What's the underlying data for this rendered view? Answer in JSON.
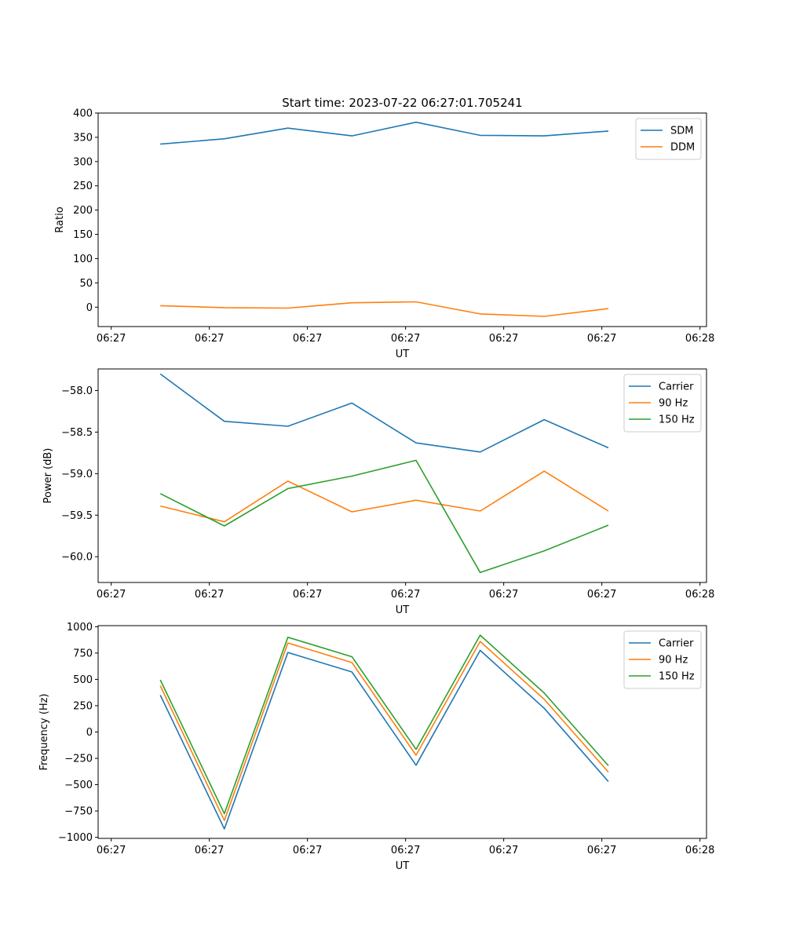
{
  "title": "Start time: 2023-07-22 06:27:01.705241",
  "chart_data": [
    {
      "type": "line",
      "xlabel": "UT",
      "ylabel": "Ratio",
      "ylim": [
        -40,
        400
      ],
      "yticks": [
        0,
        50,
        100,
        150,
        200,
        250,
        300,
        350,
        400
      ],
      "ytick_labels": [
        "0",
        "50",
        "100",
        "150",
        "200",
        "250",
        "300",
        "350",
        "400"
      ],
      "xlim": [
        -0.2,
        9.1
      ],
      "xticks": [
        0,
        1.5,
        3,
        4.5,
        6,
        7.5,
        9
      ],
      "xtick_labels": [
        "06:27",
        "06:27",
        "06:27",
        "06:27",
        "06:27",
        "06:27",
        "06:28"
      ],
      "x": [
        0.75,
        1.73,
        2.7,
        3.68,
        4.66,
        5.64,
        6.62,
        7.6
      ],
      "legend_loc": "upper-right",
      "series": [
        {
          "name": "SDM",
          "color": "#1f77b4",
          "values": [
            336,
            347,
            369,
            353,
            381,
            354,
            353,
            363
          ]
        },
        {
          "name": "DDM",
          "color": "#ff7f0e",
          "values": [
            3,
            -1,
            -2,
            9,
            11,
            -14,
            -19,
            -3
          ]
        }
      ]
    },
    {
      "type": "line",
      "xlabel": "UT",
      "ylabel": "Power (dB)",
      "ylim": [
        -60.31,
        -57.74
      ],
      "yticks": [
        -60.0,
        -59.5,
        -59.0,
        -58.5,
        -58.0
      ],
      "ytick_labels": [
        "−60.0",
        "−59.5",
        "−59.0",
        "−58.5",
        "−58.0"
      ],
      "xlim": [
        -0.2,
        9.1
      ],
      "xticks": [
        0,
        1.5,
        3,
        4.5,
        6,
        7.5,
        9
      ],
      "xtick_labels": [
        "06:27",
        "06:27",
        "06:27",
        "06:27",
        "06:27",
        "06:27",
        "06:28"
      ],
      "x": [
        0.75,
        1.73,
        2.7,
        3.68,
        4.66,
        5.64,
        6.62,
        7.6
      ],
      "legend_loc": "upper-right",
      "series": [
        {
          "name": "Carrier",
          "color": "#1f77b4",
          "values": [
            -57.8,
            -58.37,
            -58.43,
            -58.15,
            -58.63,
            -58.74,
            -58.35,
            -58.69
          ]
        },
        {
          "name": "90 Hz",
          "color": "#ff7f0e",
          "values": [
            -59.39,
            -59.58,
            -59.09,
            -59.46,
            -59.32,
            -59.45,
            -58.97,
            -59.45
          ]
        },
        {
          "name": "150 Hz",
          "color": "#2ca02c",
          "values": [
            -59.24,
            -59.63,
            -59.18,
            -59.03,
            -58.84,
            -60.19,
            -59.93,
            -59.62
          ]
        }
      ]
    },
    {
      "type": "line",
      "xlabel": "UT",
      "ylabel": "Frequency (Hz)",
      "ylim": [
        -1010,
        1010
      ],
      "yticks": [
        -1000,
        -750,
        -500,
        -250,
        0,
        250,
        500,
        750,
        1000
      ],
      "ytick_labels": [
        "−1000",
        "−750",
        "−500",
        "−250",
        "0",
        "250",
        "500",
        "750",
        "1000"
      ],
      "xlim": [
        -0.2,
        9.1
      ],
      "xticks": [
        0,
        1.5,
        3,
        4.5,
        6,
        7.5,
        9
      ],
      "xtick_labels": [
        "06:27",
        "06:27",
        "06:27",
        "06:27",
        "06:27",
        "06:27",
        "06:28"
      ],
      "x": [
        0.75,
        1.73,
        2.7,
        3.68,
        4.66,
        5.64,
        6.62,
        7.6
      ],
      "legend_loc": "upper-right",
      "series": [
        {
          "name": "Carrier",
          "color": "#1f77b4",
          "values": [
            350,
            -920,
            755,
            570,
            -315,
            775,
            225,
            -470
          ]
        },
        {
          "name": "90 Hz",
          "color": "#ff7f0e",
          "values": [
            440,
            -840,
            845,
            660,
            -220,
            860,
            310,
            -380
          ]
        },
        {
          "name": "150 Hz",
          "color": "#2ca02c",
          "values": [
            495,
            -775,
            900,
            715,
            -165,
            920,
            370,
            -320
          ]
        }
      ]
    }
  ]
}
